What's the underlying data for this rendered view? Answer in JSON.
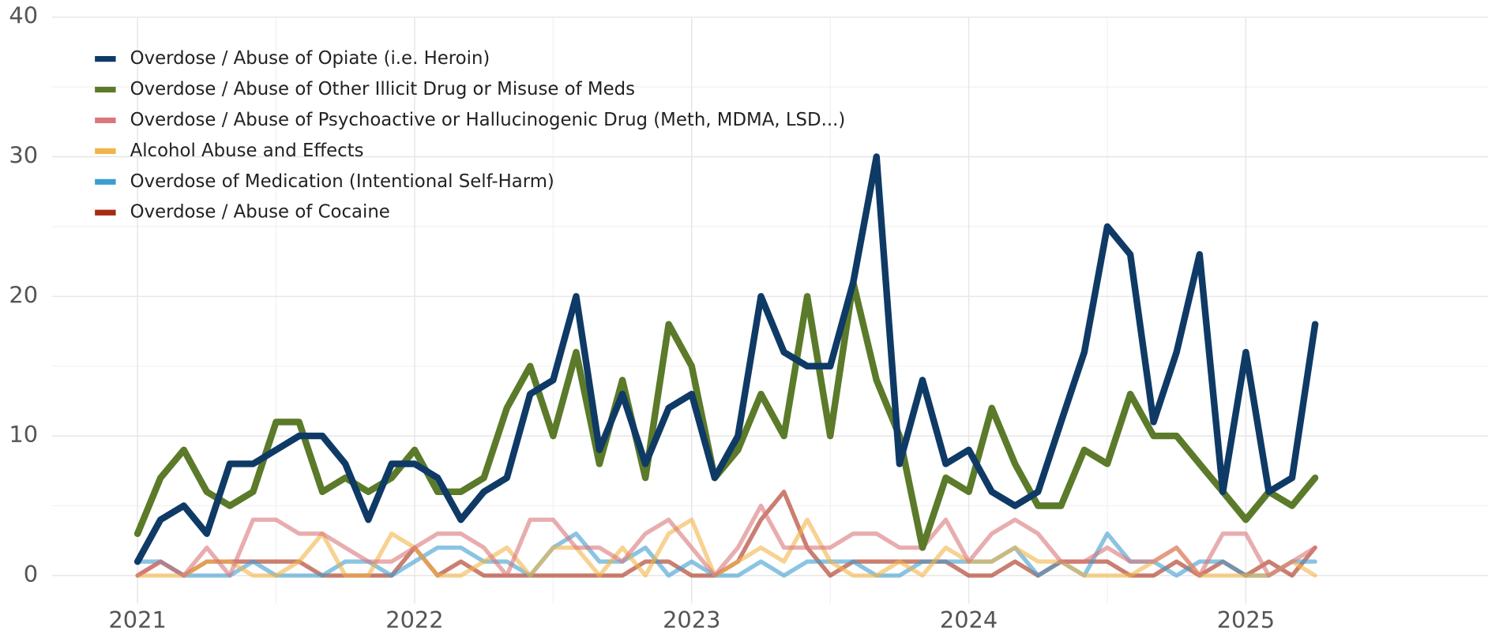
{
  "chart_data": {
    "type": "line",
    "x": [
      2021,
      2021.083,
      2021.167,
      2021.25,
      2021.333,
      2021.417,
      2021.5,
      2021.583,
      2021.667,
      2021.75,
      2021.833,
      2021.917,
      2022,
      2022.083,
      2022.167,
      2022.25,
      2022.333,
      2022.417,
      2022.5,
      2022.583,
      2022.667,
      2022.75,
      2022.833,
      2022.917,
      2023,
      2023.083,
      2023.167,
      2023.25,
      2023.333,
      2023.417,
      2023.5,
      2023.583,
      2023.667,
      2023.75,
      2023.833,
      2023.917,
      2024,
      2024.083,
      2024.167,
      2024.25,
      2024.333,
      2024.417,
      2024.5,
      2024.583,
      2024.667,
      2024.75,
      2024.833,
      2024.917,
      2025,
      2025.083,
      2025.167,
      2025.25
    ],
    "series": [
      {
        "name": "Overdose / Abuse of Opiate (i.e. Heroin)",
        "color": "#0f3a66",
        "values": [
          1,
          4,
          5,
          3,
          8,
          8,
          9,
          10,
          10,
          8,
          4,
          8,
          8,
          7,
          4,
          6,
          7,
          13,
          14,
          20,
          9,
          13,
          8,
          12,
          13,
          7,
          10,
          20,
          16,
          15,
          15,
          21,
          30,
          8,
          14,
          8,
          9,
          6,
          5,
          6,
          11,
          16,
          25,
          23,
          11,
          16,
          23,
          6,
          16,
          6,
          7,
          18
        ]
      },
      {
        "name": "Overdose / Abuse of Other Illicit Drug or Misuse of Meds",
        "color": "#5b7a2a",
        "values": [
          3,
          7,
          9,
          6,
          5,
          6,
          11,
          11,
          6,
          7,
          6,
          7,
          9,
          6,
          6,
          7,
          12,
          15,
          10,
          16,
          8,
          14,
          7,
          18,
          15,
          7,
          9,
          13,
          10,
          20,
          10,
          21,
          14,
          10,
          2,
          7,
          6,
          12,
          8,
          5,
          5,
          9,
          8,
          13,
          10,
          10,
          8,
          6,
          4,
          6,
          5,
          7
        ]
      },
      {
        "name": "Overdose / Abuse of Psychoactive or Hallucinogenic Drug (Meth, MDMA, LSD...)",
        "color": "#d9777a",
        "values": [
          0,
          1,
          0,
          2,
          0,
          4,
          4,
          3,
          3,
          2,
          1,
          1,
          2,
          3,
          3,
          2,
          0,
          4,
          4,
          2,
          2,
          1,
          3,
          4,
          2,
          0,
          2,
          5,
          2,
          2,
          2,
          3,
          3,
          2,
          2,
          4,
          1,
          3,
          4,
          3,
          1,
          1,
          2,
          1,
          1,
          2,
          0,
          3,
          3,
          0,
          1,
          2
        ]
      },
      {
        "name": "Alcohol Abuse and Effects",
        "color": "#f2b447",
        "values": [
          0,
          0,
          0,
          1,
          1,
          0,
          0,
          1,
          3,
          0,
          0,
          3,
          2,
          0,
          0,
          1,
          2,
          0,
          2,
          2,
          0,
          2,
          0,
          3,
          4,
          0,
          1,
          2,
          1,
          4,
          1,
          0,
          0,
          1,
          0,
          2,
          1,
          1,
          2,
          1,
          1,
          0,
          0,
          0,
          1,
          2,
          0,
          0,
          0,
          0,
          1,
          0
        ]
      },
      {
        "name": "Overdose of Medication (Intentional Self-Harm)",
        "color": "#3d9dcf",
        "values": [
          1,
          1,
          0,
          0,
          0,
          1,
          0,
          0,
          0,
          1,
          1,
          0,
          1,
          2,
          2,
          1,
          1,
          0,
          2,
          3,
          1,
          1,
          2,
          0,
          1,
          0,
          0,
          1,
          0,
          1,
          1,
          1,
          0,
          0,
          1,
          1,
          1,
          1,
          2,
          0,
          1,
          0,
          3,
          1,
          1,
          0,
          1,
          1,
          0,
          0,
          1,
          1
        ]
      },
      {
        "name": "Overdose / Abuse of Cocaine",
        "color": "#a72a12",
        "values": [
          0,
          1,
          0,
          1,
          1,
          1,
          1,
          1,
          0,
          0,
          0,
          0,
          2,
          0,
          1,
          0,
          0,
          0,
          0,
          0,
          0,
          0,
          1,
          1,
          0,
          0,
          1,
          4,
          6,
          2,
          0,
          1,
          1,
          1,
          1,
          1,
          0,
          0,
          1,
          0,
          1,
          1,
          1,
          0,
          0,
          1,
          0,
          1,
          0,
          1,
          0,
          2
        ]
      }
    ],
    "xlim": [
      2020.692,
      2025.874
    ],
    "xticks": [
      2021,
      2022,
      2023,
      2024,
      2025
    ],
    "ylim": [
      -2,
      40
    ],
    "yticks": [
      0,
      10,
      20,
      30,
      40
    ],
    "grid": true,
    "legend": "top-left"
  }
}
